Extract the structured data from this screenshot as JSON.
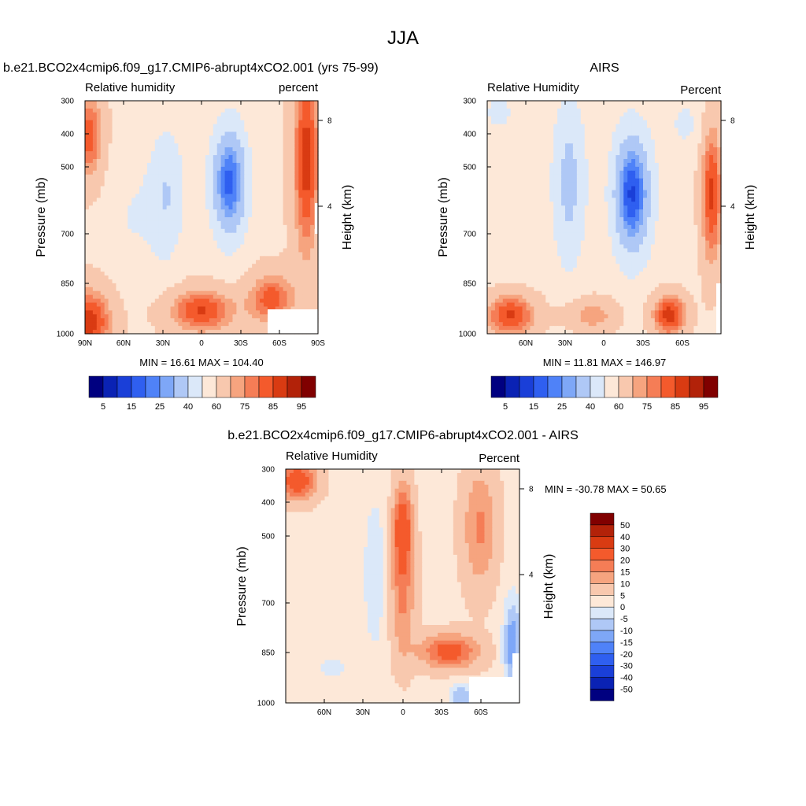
{
  "page_title": "JJA",
  "colors": {
    "rh_scale": [
      "#000080",
      "#0a22b4",
      "#1a3fd8",
      "#2f5ff0",
      "#4f82f8",
      "#7ea7f7",
      "#afc8f6",
      "#dbe8f9",
      "#fde8d8",
      "#f8c8ae",
      "#f6a47f",
      "#f57d56",
      "#f45a2c",
      "#d93b12",
      "#b22209",
      "#800000"
    ],
    "diff_scale": [
      "#000080",
      "#0a22b4",
      "#1a3fd8",
      "#2f5ff0",
      "#4f82f8",
      "#7ea7f7",
      "#afc8f6",
      "#dbe8f9",
      "#fde8d8",
      "#f8c8ae",
      "#f6a47f",
      "#f57d56",
      "#f45a2c",
      "#d93b12",
      "#b22209",
      "#800000"
    ]
  },
  "chart_data": [
    {
      "type": "heatmap",
      "title": "b.e21.BCO2x4cmip6.f09_g17.CMIP6-abrupt4xCO2.001 (yrs 75-99)",
      "left_label": "Relative humidity",
      "right_label": "percent",
      "ylabel": "Pressure (mb)",
      "y2label": "Height (km)",
      "y_ticks": [
        "300",
        "400",
        "500",
        "700",
        "850",
        "1000"
      ],
      "y2_ticks": [
        "8",
        "4"
      ],
      "x_ticks": [
        "90N",
        "60N",
        "30N",
        "0",
        "30S",
        "60S",
        "90S"
      ],
      "stats": "MIN =  16.61  MAX = 104.40",
      "levels": [
        "5",
        "15",
        "25",
        "40",
        "60",
        "75",
        "85",
        "95"
      ]
    },
    {
      "type": "heatmap",
      "title": "AIRS",
      "left_label": "Relative Humidity",
      "right_label": "Percent",
      "ylabel": "Pressure (mb)",
      "y2label": "Height (km)",
      "y_ticks": [
        "300",
        "400",
        "500",
        "700",
        "850",
        "1000"
      ],
      "y2_ticks": [
        "8",
        "4"
      ],
      "x_ticks": [
        "60N",
        "30N",
        "0",
        "30S",
        "60S"
      ],
      "stats": "MIN =  11.81  MAX = 146.97",
      "levels": [
        "5",
        "15",
        "25",
        "40",
        "60",
        "75",
        "85",
        "95"
      ]
    },
    {
      "type": "heatmap",
      "title": "b.e21.BCO2x4cmip6.f09_g17.CMIP6-abrupt4xCO2.001 - AIRS",
      "left_label": "Relative Humidity",
      "right_label": "Percent",
      "ylabel": "Pressure (mb)",
      "y2label": "Height (km)",
      "y_ticks": [
        "300",
        "400",
        "500",
        "700",
        "850",
        "1000"
      ],
      "y2_ticks": [
        "8",
        "4"
      ],
      "x_ticks": [
        "60N",
        "30N",
        "0",
        "30S",
        "60S"
      ],
      "stats": "MIN = -30.78  MAX =  50.65",
      "levels": [
        "50",
        "40",
        "30",
        "20",
        "15",
        "10",
        "5",
        "0",
        "-5",
        "-10",
        "-15",
        "-20",
        "-30",
        "-40",
        "-50"
      ]
    }
  ]
}
